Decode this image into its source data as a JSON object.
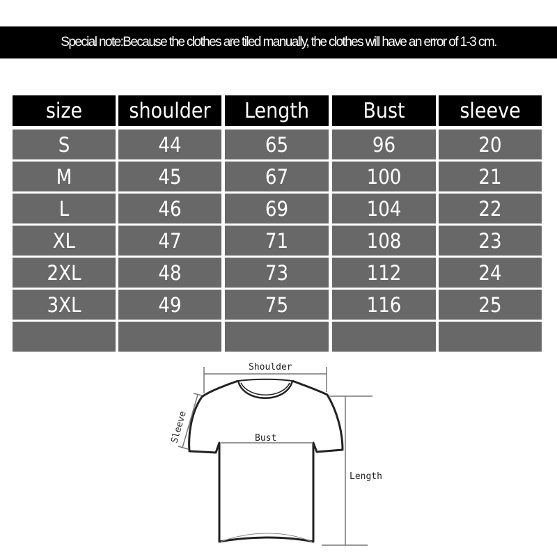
{
  "note": "Special note:Because the clothes are tiled manually, the clothes will have an error of 1-3 cm.",
  "table": {
    "headers": [
      "size",
      "shoulder",
      "Length",
      "Bust",
      "sleeve"
    ],
    "rows": [
      [
        "S",
        "44",
        "65",
        "96",
        "20"
      ],
      [
        "M",
        "45",
        "67",
        "100",
        "21"
      ],
      [
        "L",
        "46",
        "69",
        "104",
        "22"
      ],
      [
        "XL",
        "47",
        "71",
        "108",
        "23"
      ],
      [
        "2XL",
        "48",
        "73",
        "112",
        "24"
      ],
      [
        "3XL",
        "49",
        "75",
        "116",
        "25"
      ],
      [
        "",
        "",
        "",
        "",
        ""
      ]
    ]
  },
  "diagram": {
    "shoulder": "Shoulder",
    "bust": "Bust",
    "sleeve": "Sleeve",
    "length": "Length"
  },
  "colors": {
    "header_bg": "#000000",
    "row_bg": "#686868",
    "text": "#ffffff"
  }
}
